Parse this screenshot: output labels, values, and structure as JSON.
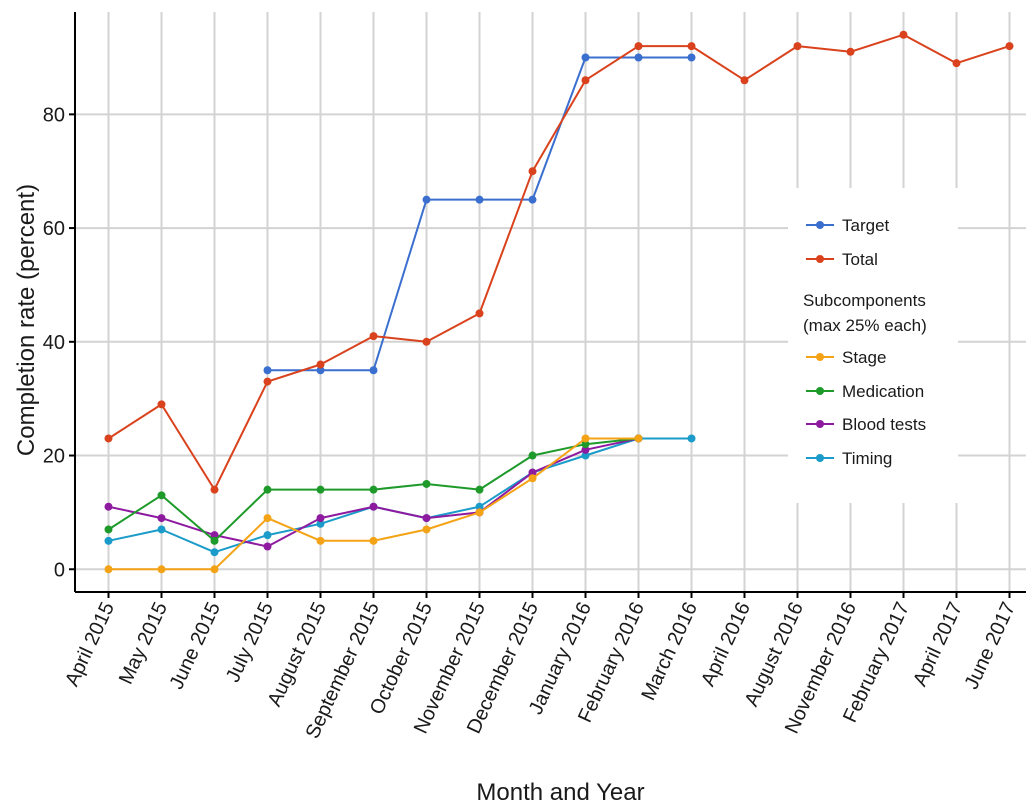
{
  "chart_data": {
    "type": "line",
    "xlabel": "Month and Year",
    "ylabel": "Completion rate (percent)",
    "ylim": [
      -4,
      98
    ],
    "yticks": [
      0,
      20,
      40,
      60,
      80
    ],
    "grid": "on",
    "legend_position": "right",
    "categories": [
      "April 2015",
      "May 2015",
      "June 2015",
      "July 2015",
      "August 2015",
      "September 2015",
      "October 2015",
      "November 2015",
      "December 2015",
      "January 2016",
      "February 2016",
      "March 2016",
      "April 2016",
      "August 2016",
      "November 2016",
      "February 2017",
      "April 2017",
      "June 2017"
    ],
    "series": [
      {
        "name": "Target",
        "color": "#3b6fcf",
        "values": [
          null,
          null,
          null,
          35,
          35,
          35,
          65,
          65,
          65,
          90,
          90,
          90,
          null,
          null,
          null,
          null,
          null,
          null
        ]
      },
      {
        "name": "Total",
        "color": "#d9421c",
        "values": [
          23,
          29,
          14,
          33,
          36,
          41,
          40,
          45,
          70,
          86,
          92,
          92,
          86,
          92,
          91,
          94,
          89,
          92
        ]
      },
      {
        "name": "Stage",
        "color": "#f5a316",
        "values": [
          0,
          0,
          0,
          9,
          5,
          5,
          7,
          10,
          16,
          23,
          23,
          null,
          null,
          null,
          null,
          null,
          null,
          null
        ]
      },
      {
        "name": "Medication",
        "color": "#1e9a2b",
        "values": [
          7,
          13,
          5,
          14,
          14,
          14,
          15,
          14,
          20,
          22,
          23,
          null,
          null,
          null,
          null,
          null,
          null,
          null
        ]
      },
      {
        "name": "Blood tests",
        "color": "#8e1aa0",
        "values": [
          11,
          9,
          6,
          4,
          9,
          11,
          9,
          10,
          17,
          21,
          23,
          null,
          null,
          null,
          null,
          null,
          null,
          null
        ]
      },
      {
        "name": "Timing",
        "color": "#1a9bc9",
        "values": [
          5,
          7,
          3,
          6,
          8,
          11,
          9,
          11,
          17,
          20,
          23,
          23,
          null,
          null,
          null,
          null,
          null,
          null
        ]
      }
    ],
    "legend": {
      "heading_line1": "Subcomponents",
      "heading_line2": "(max 25% each)"
    }
  }
}
